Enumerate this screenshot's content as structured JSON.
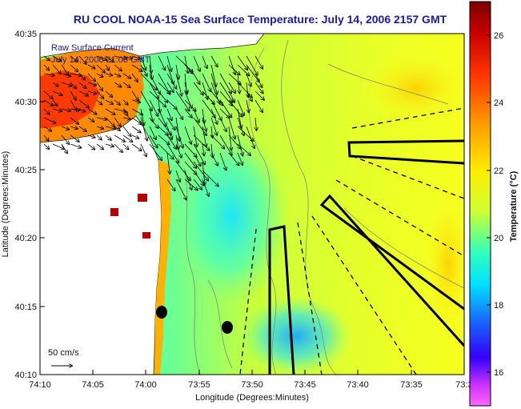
{
  "title": "RU COOL  NOAA-15  Sea Surface Temperature:  July 14, 2006 2157 GMT",
  "x_axis": {
    "label": "Longitude (Degrees:Minutes)",
    "ticks": [
      "74:10",
      "74:05",
      "74:00",
      "73:55",
      "73:50",
      "73:45",
      "73:40",
      "73:35",
      "73:3"
    ]
  },
  "y_axis": {
    "label": "Latitude (Degrees:Minutes)",
    "ticks": [
      "40:35",
      "40:30",
      "40:25",
      "40:20",
      "40:15",
      "40:10"
    ]
  },
  "overlay": {
    "line1": "Raw Surface Current",
    "line2": "July 14, 2006 21:00 GMT"
  },
  "scale": {
    "label": "50 cm/s"
  },
  "colorbar": {
    "label": "Temperature (°C)",
    "ticks": [
      "26",
      "24",
      "22",
      "20",
      "18",
      "16"
    ],
    "range": [
      15,
      27
    ]
  },
  "colors": {
    "title": "#1a1aa8",
    "land": "#ffffff",
    "frame": "#000000"
  }
}
